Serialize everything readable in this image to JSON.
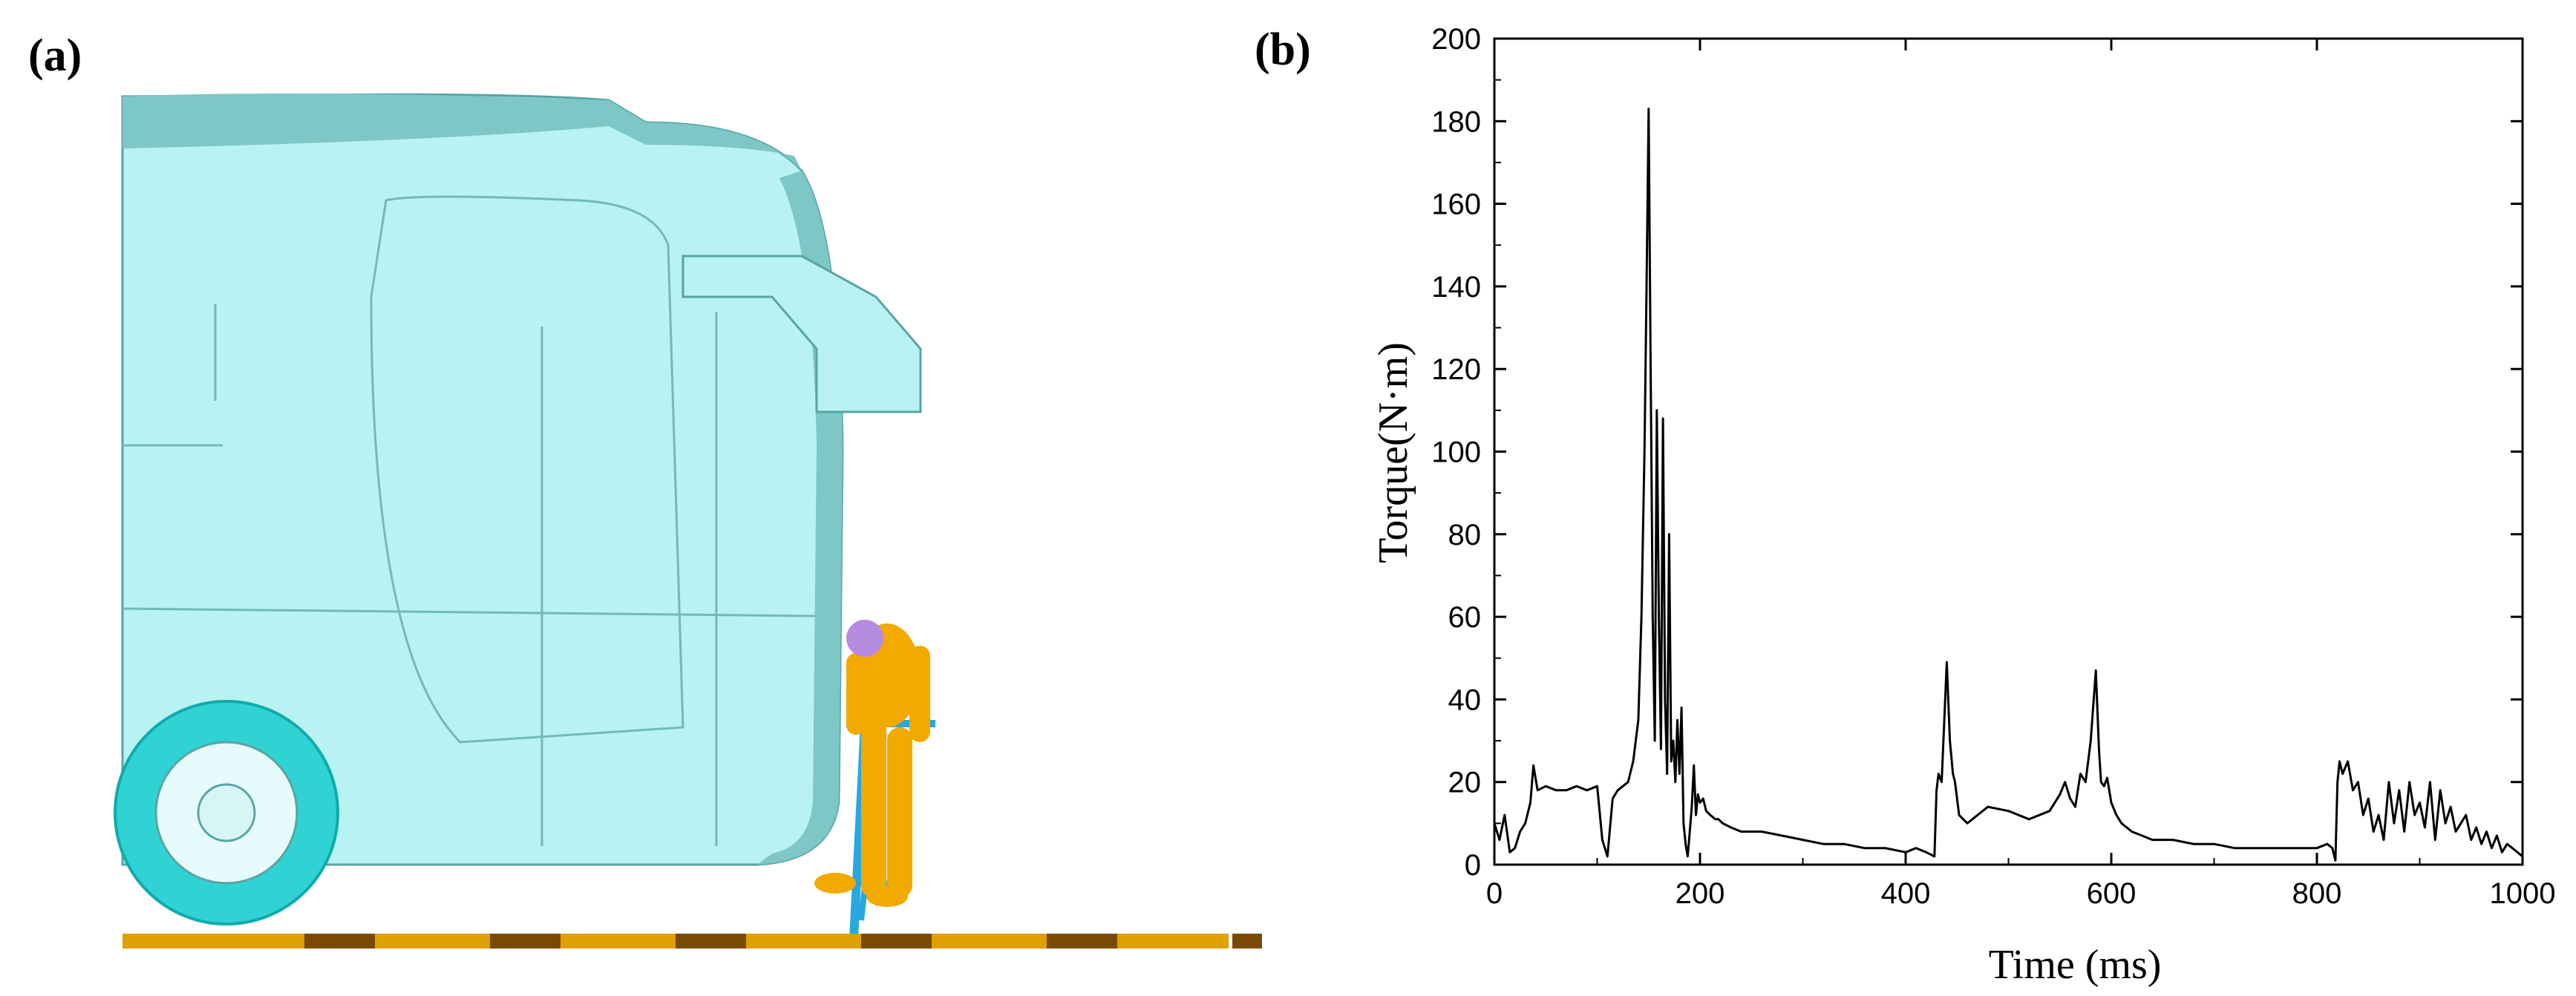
{
  "panels": {
    "a_label": "(a)",
    "b_label": "(b)"
  },
  "scene": {
    "bus_color": "#b8f2f2",
    "bus_shade": "#7fc6c6",
    "wheel_color": "#2fd3d3",
    "dummy_color": "#f2a900",
    "head_color": "#b58be0",
    "bicycle_color": "#2aa7e0",
    "ground_color": "#e0a000",
    "ground_dark": "#7a4a00"
  },
  "chart_data": {
    "type": "line",
    "xlabel": "Time (ms)",
    "ylabel": "Torque(N·m)",
    "xlim": [
      0,
      1000
    ],
    "ylim": [
      0,
      200
    ],
    "x_ticks": [
      0,
      200,
      400,
      600,
      800,
      1000
    ],
    "y_ticks": [
      0,
      20,
      40,
      60,
      80,
      100,
      120,
      140,
      160,
      180,
      200
    ],
    "grid": false,
    "series": [
      {
        "color": "#000000",
        "x": [
          0,
          5,
          10,
          15,
          20,
          25,
          30,
          35,
          38,
          42,
          50,
          60,
          70,
          80,
          90,
          100,
          105,
          110,
          115,
          120,
          125,
          130,
          135,
          140,
          143,
          146,
          148,
          150,
          152,
          154,
          156,
          158,
          160,
          162,
          164,
          166,
          168,
          170,
          172,
          174,
          176,
          178,
          180,
          182,
          184,
          186,
          188,
          190,
          192,
          194,
          196,
          198,
          200,
          203,
          206,
          210,
          215,
          218,
          222,
          230,
          240,
          260,
          280,
          300,
          320,
          340,
          360,
          380,
          400,
          410,
          420,
          428,
          430,
          432,
          435,
          440,
          443,
          446,
          448,
          452,
          460,
          470,
          480,
          500,
          520,
          540,
          550,
          555,
          560,
          565,
          570,
          575,
          580,
          585,
          588,
          590,
          593,
          596,
          600,
          605,
          610,
          615,
          620,
          630,
          640,
          660,
          680,
          700,
          720,
          740,
          760,
          780,
          800,
          810,
          815,
          818,
          820,
          822,
          825,
          830,
          835,
          840,
          845,
          850,
          855,
          860,
          865,
          870,
          875,
          880,
          885,
          890,
          895,
          900,
          905,
          910,
          915,
          920,
          925,
          930,
          935,
          940,
          945,
          950,
          955,
          960,
          965,
          970,
          975,
          980,
          985,
          990,
          995,
          1000
        ],
        "y": [
          10,
          6,
          12,
          3,
          4,
          8,
          10,
          15,
          24,
          18,
          19,
          18,
          18,
          19,
          18,
          19,
          6,
          2,
          16,
          18,
          19,
          20,
          25,
          35,
          60,
          100,
          140,
          183,
          120,
          60,
          30,
          110,
          60,
          28,
          108,
          40,
          22,
          80,
          25,
          30,
          20,
          35,
          22,
          38,
          10,
          5,
          2,
          8,
          14,
          24,
          12,
          17,
          15,
          16,
          13,
          12,
          11,
          11,
          10,
          9,
          8,
          8,
          7,
          6,
          5,
          5,
          4,
          4,
          3,
          4,
          3,
          2,
          18,
          22,
          20,
          49,
          30,
          22,
          20,
          12,
          10,
          12,
          14,
          13,
          11,
          13,
          17,
          20,
          16,
          14,
          22,
          20,
          30,
          47,
          28,
          20,
          19,
          21,
          15,
          12,
          10,
          9,
          8,
          7,
          6,
          6,
          5,
          5,
          4,
          4,
          4,
          4,
          4,
          5,
          4,
          1,
          20,
          25,
          22,
          25,
          18,
          20,
          12,
          16,
          8,
          12,
          6,
          20,
          10,
          18,
          8,
          20,
          12,
          15,
          9,
          20,
          6,
          18,
          10,
          14,
          8,
          10,
          12,
          6,
          9,
          5,
          8,
          4,
          7,
          3,
          5,
          4,
          3,
          2
        ]
      }
    ]
  }
}
